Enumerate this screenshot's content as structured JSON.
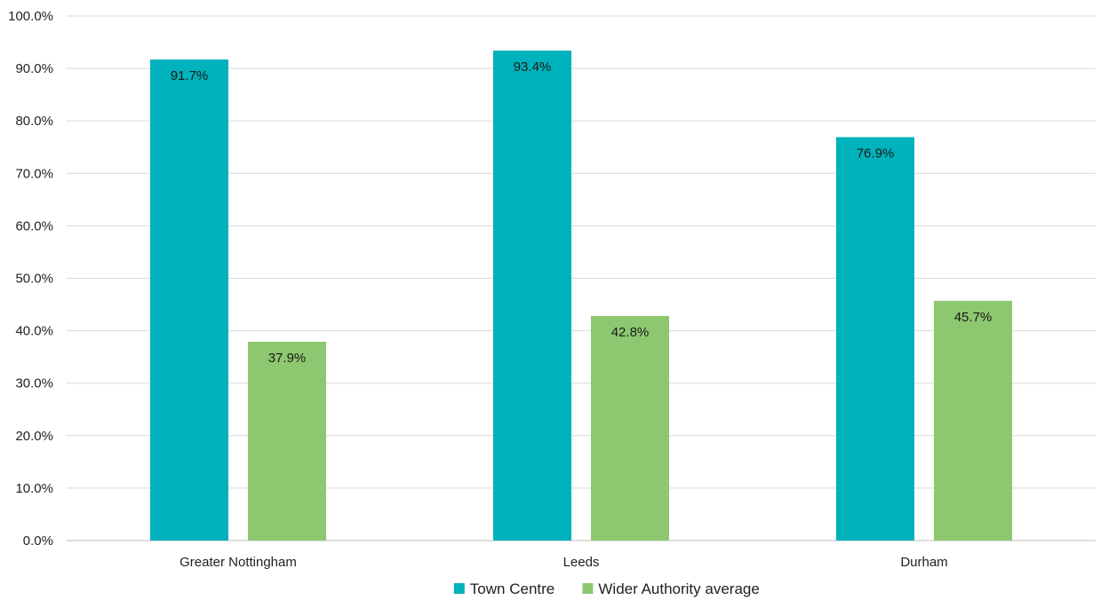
{
  "chart_data": {
    "type": "bar",
    "title": "",
    "xlabel": "",
    "ylabel": "",
    "ylim": [
      0,
      100
    ],
    "y_tick_step": 10,
    "y_tick_suffix": "%",
    "grid": true,
    "legend": "bottom",
    "categories": [
      "Greater Nottingham",
      "Leeds",
      "Durham"
    ],
    "series": [
      {
        "name": "Town Centre",
        "color": "#00b2bb",
        "values": [
          91.7,
          93.4,
          76.9
        ]
      },
      {
        "name": "Wider Authority average",
        "color": "#8dc870",
        "values": [
          37.9,
          42.8,
          45.7
        ]
      }
    ]
  }
}
